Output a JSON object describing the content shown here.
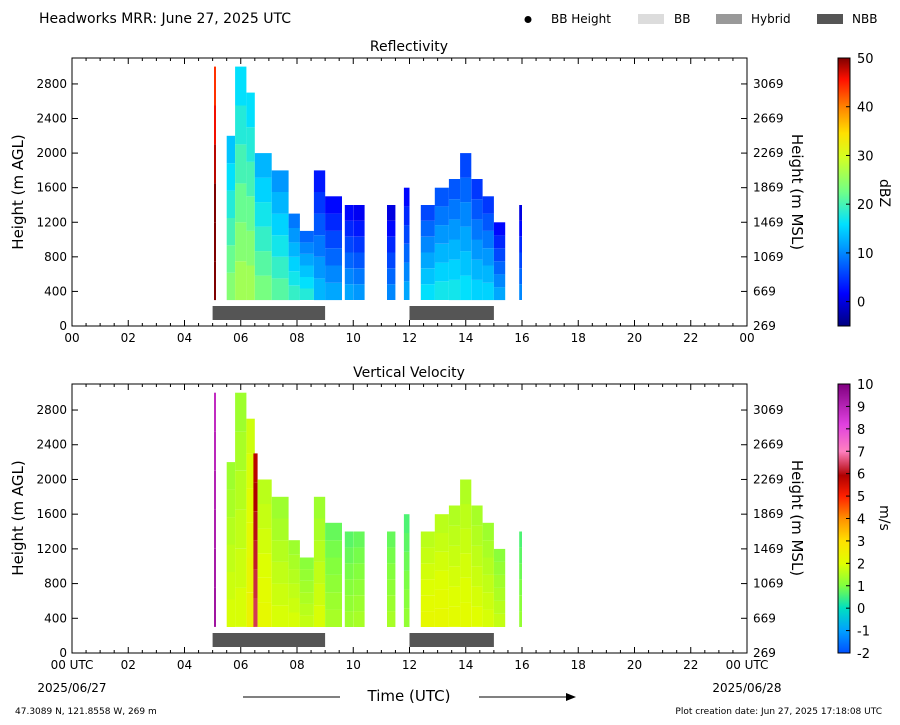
{
  "header": {
    "title": "Headworks MRR:  June 27, 2025 UTC",
    "legend": [
      {
        "label": "BB Height",
        "kind": "dot",
        "color": "#000000"
      },
      {
        "label": "BB",
        "kind": "box",
        "color": "#dcdcdc"
      },
      {
        "label": "Hybrid",
        "kind": "box",
        "color": "#999999"
      },
      {
        "label": "NBB",
        "kind": "box",
        "color": "#555555"
      }
    ]
  },
  "footer": {
    "location": "47.3089 N, 121.8558 W, 269 m",
    "creation": "Plot creation date: Jun 27, 2025 17:18:08 UTC",
    "time_label": "Time (UTC)",
    "start_label": "00 UTC",
    "start_date": "2025/06/27",
    "end_label": "00 UTC",
    "end_date": "2025/06/28"
  },
  "chart_data": [
    {
      "type": "heatmap",
      "title": "Reflectivity",
      "ylabel": "Height (m AGL)",
      "ylabel_right": "Height (m MSL)",
      "xlim": [
        0,
        24
      ],
      "ylim": [
        0,
        3100
      ],
      "x_ticks": [
        "00",
        "02",
        "04",
        "06",
        "08",
        "10",
        "12",
        "14",
        "16",
        "18",
        "20",
        "22",
        "00"
      ],
      "y_ticks": [
        0,
        400,
        800,
        1200,
        1600,
        2000,
        2400,
        2800
      ],
      "y_ticks_right": [
        269,
        669,
        1069,
        1469,
        1869,
        2269,
        2669,
        3069
      ],
      "colorbar": {
        "label": "dBZ",
        "min": -5,
        "max": 50,
        "ticks": [
          0,
          10,
          20,
          30,
          40,
          50
        ]
      },
      "bb_bars": [
        {
          "type": "NBB",
          "start": 5.0,
          "end": 9.0
        },
        {
          "type": "NBB",
          "start": 12.0,
          "end": 15.0
        }
      ],
      "echo_columns": [
        {
          "start": 5.05,
          "end": 5.12,
          "top": 3000,
          "value": 48
        },
        {
          "start": 5.5,
          "end": 5.8,
          "top": 2200,
          "value": 18
        },
        {
          "start": 5.8,
          "end": 6.2,
          "top": 3000,
          "value": 20
        },
        {
          "start": 6.2,
          "end": 6.5,
          "top": 2700,
          "value": 20
        },
        {
          "start": 6.5,
          "end": 7.1,
          "top": 2000,
          "value": 17
        },
        {
          "start": 7.1,
          "end": 7.7,
          "top": 1800,
          "value": 15
        },
        {
          "start": 7.7,
          "end": 8.1,
          "top": 1300,
          "value": 13
        },
        {
          "start": 8.1,
          "end": 8.6,
          "top": 1100,
          "value": 12
        },
        {
          "start": 8.6,
          "end": 9.0,
          "top": 1800,
          "value": 7
        },
        {
          "start": 9.0,
          "end": 9.6,
          "top": 1500,
          "value": 6
        },
        {
          "start": 9.7,
          "end": 10.0,
          "top": 1400,
          "value": 6
        },
        {
          "start": 10.0,
          "end": 10.4,
          "top": 1400,
          "value": 5
        },
        {
          "start": 11.2,
          "end": 11.5,
          "top": 1400,
          "value": 4
        },
        {
          "start": 11.8,
          "end": 12.0,
          "top": 1600,
          "value": 6
        },
        {
          "start": 12.4,
          "end": 12.9,
          "top": 1400,
          "value": 10
        },
        {
          "start": 12.9,
          "end": 13.4,
          "top": 1600,
          "value": 11
        },
        {
          "start": 13.4,
          "end": 13.8,
          "top": 1700,
          "value": 11
        },
        {
          "start": 13.8,
          "end": 14.2,
          "top": 2000,
          "value": 10
        },
        {
          "start": 14.2,
          "end": 14.6,
          "top": 1700,
          "value": 9
        },
        {
          "start": 14.6,
          "end": 15.0,
          "top": 1500,
          "value": 9
        },
        {
          "start": 15.0,
          "end": 15.4,
          "top": 1200,
          "value": 6
        },
        {
          "start": 15.9,
          "end": 16.0,
          "top": 1400,
          "value": 4
        }
      ]
    },
    {
      "type": "heatmap",
      "title": "Vertical Velocity",
      "ylabel": "Height (m AGL)",
      "ylabel_right": "Height (m MSL)",
      "xlim": [
        0,
        24
      ],
      "ylim": [
        0,
        3100
      ],
      "x_ticks": [
        "00 UTC",
        "02",
        "04",
        "06",
        "08",
        "10",
        "12",
        "14",
        "16",
        "18",
        "20",
        "22",
        "00 UTC"
      ],
      "y_ticks": [
        0,
        400,
        800,
        1200,
        1600,
        2000,
        2400,
        2800
      ],
      "y_ticks_right": [
        269,
        669,
        1069,
        1469,
        1869,
        2269,
        2669,
        3069
      ],
      "colorbar": {
        "label": "m/s",
        "min": -2,
        "max": 10,
        "ticks": [
          -2,
          -1,
          0,
          1,
          2,
          3,
          4,
          5,
          6,
          7,
          8,
          9,
          10
        ]
      },
      "bb_bars": [
        {
          "type": "NBB",
          "start": 5.0,
          "end": 9.0
        },
        {
          "type": "NBB",
          "start": 12.0,
          "end": 15.0
        }
      ],
      "echo_columns": [
        {
          "start": 5.05,
          "end": 5.12,
          "top": 3000,
          "value": 9
        },
        {
          "start": 5.5,
          "end": 5.8,
          "top": 2200,
          "value": 1.5
        },
        {
          "start": 5.8,
          "end": 6.2,
          "top": 3000,
          "value": 1.5
        },
        {
          "start": 6.2,
          "end": 6.5,
          "top": 2700,
          "value": 2
        },
        {
          "start": 6.45,
          "end": 6.6,
          "top": 2300,
          "value": 6
        },
        {
          "start": 6.6,
          "end": 7.1,
          "top": 2000,
          "value": 1.8
        },
        {
          "start": 7.1,
          "end": 7.7,
          "top": 1800,
          "value": 1.5
        },
        {
          "start": 7.7,
          "end": 8.1,
          "top": 1300,
          "value": 1.5
        },
        {
          "start": 8.1,
          "end": 8.6,
          "top": 1100,
          "value": 1.3
        },
        {
          "start": 8.6,
          "end": 9.0,
          "top": 1800,
          "value": 1.5
        },
        {
          "start": 9.0,
          "end": 9.6,
          "top": 1500,
          "value": 1.0
        },
        {
          "start": 9.7,
          "end": 10.0,
          "top": 1400,
          "value": 0.9
        },
        {
          "start": 10.0,
          "end": 10.4,
          "top": 1400,
          "value": 1.0
        },
        {
          "start": 11.2,
          "end": 11.5,
          "top": 1400,
          "value": 1.0
        },
        {
          "start": 11.8,
          "end": 12.0,
          "top": 1600,
          "value": 0.8
        },
        {
          "start": 12.4,
          "end": 12.9,
          "top": 1400,
          "value": 1.8
        },
        {
          "start": 12.9,
          "end": 13.4,
          "top": 1600,
          "value": 1.8
        },
        {
          "start": 13.4,
          "end": 13.8,
          "top": 1700,
          "value": 1.7
        },
        {
          "start": 13.8,
          "end": 14.2,
          "top": 2000,
          "value": 1.7
        },
        {
          "start": 14.2,
          "end": 14.6,
          "top": 1700,
          "value": 1.6
        },
        {
          "start": 14.6,
          "end": 15.0,
          "top": 1500,
          "value": 1.5
        },
        {
          "start": 15.0,
          "end": 15.4,
          "top": 1200,
          "value": 1.3
        },
        {
          "start": 15.9,
          "end": 16.0,
          "top": 1400,
          "value": 0.8
        }
      ]
    }
  ]
}
